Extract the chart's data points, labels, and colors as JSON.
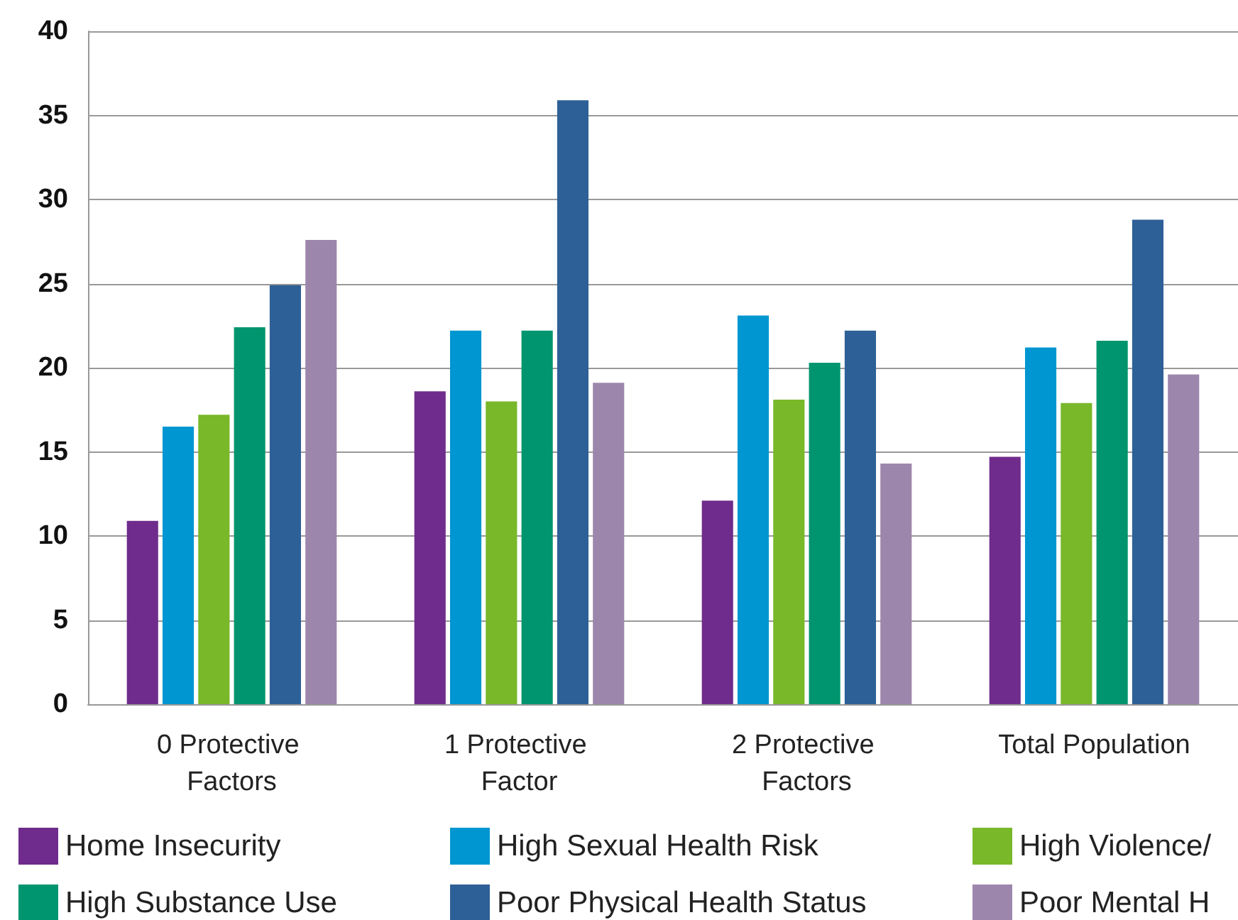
{
  "chart_data": {
    "type": "bar",
    "categories": [
      "0 Protective Factors",
      "1 Protective Factor",
      "2 Protective Factors",
      "Total Population"
    ],
    "series": [
      {
        "name": "Home Insecurity",
        "color": "#6f2c8c",
        "values": [
          10.9,
          18.6,
          12.1,
          14.7
        ]
      },
      {
        "name": "High Sexual Health Risk",
        "color": "#0096d1",
        "values": [
          16.5,
          22.2,
          23.1,
          21.2
        ]
      },
      {
        "name": "High Violence/",
        "color": "#78b829",
        "values": [
          17.2,
          18.0,
          18.1,
          17.9
        ]
      },
      {
        "name": "High Substance Use",
        "color": "#00956e",
        "values": [
          22.4,
          22.2,
          20.3,
          21.6
        ]
      },
      {
        "name": "Poor Physical Health Status",
        "color": "#2d6096",
        "values": [
          24.9,
          35.9,
          22.2,
          28.8
        ]
      },
      {
        "name": "Poor Mental H",
        "color": "#9d86ac",
        "values": [
          27.6,
          19.1,
          14.3,
          19.6
        ]
      }
    ],
    "ylim": [
      0,
      40
    ],
    "yticks": [
      0,
      5,
      10,
      15,
      20,
      25,
      30,
      35,
      40
    ],
    "grid": "y",
    "legend": "bottom"
  }
}
